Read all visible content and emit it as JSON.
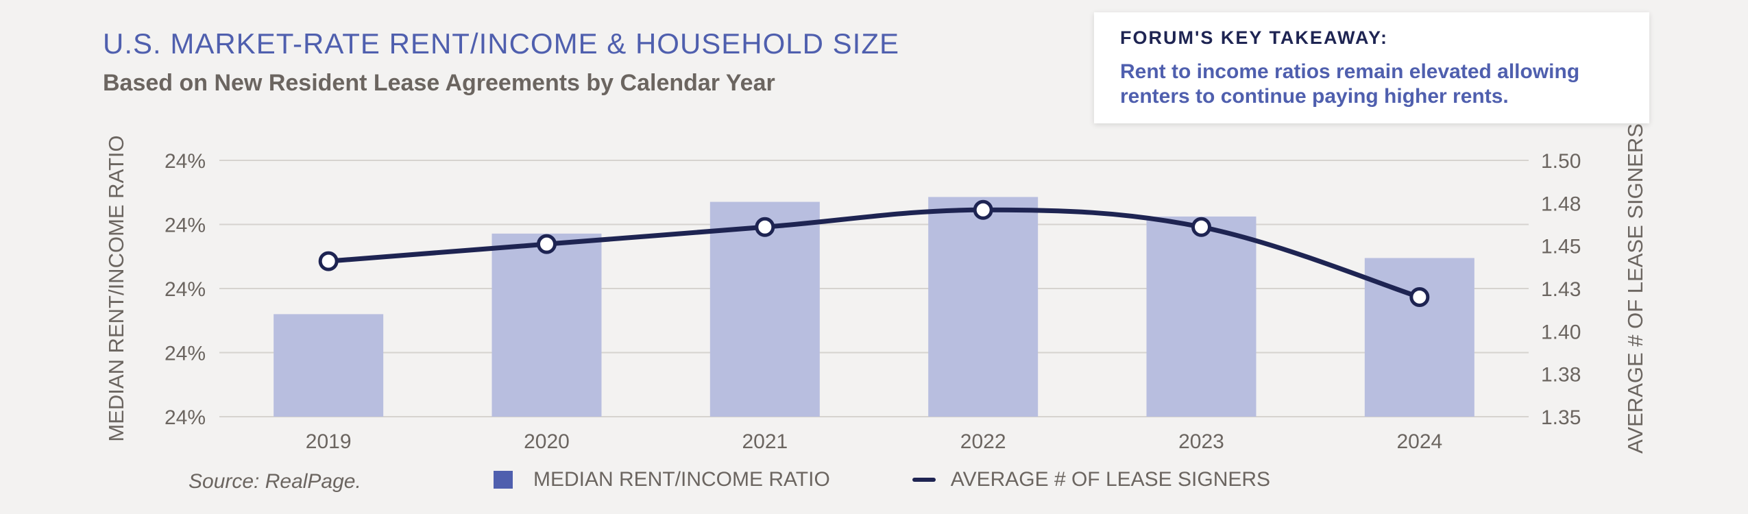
{
  "header": {
    "title": "U.S. MARKET-RATE RENT/INCOME & HOUSEHOLD SIZE",
    "subtitle": "Based on New Resident Lease Agreements by Calendar Year"
  },
  "takeaway": {
    "heading": "FORUM'S KEY TAKEAWAY:",
    "text": "Rent to income ratios remain elevated allowing renters to continue paying higher rents."
  },
  "source": "Source: RealPage.",
  "colors": {
    "bar": "#b8bedf",
    "line": "#1e2452",
    "accent": "#4f5fae"
  },
  "chart_data": {
    "type": "bar",
    "categories": [
      "2019",
      "2020",
      "2021",
      "2022",
      "2023",
      "2024"
    ],
    "series": [
      {
        "name": "MEDIAN RENT/INCOME RATIO",
        "type": "bar",
        "axis": "left",
        "values": [
          0.2352,
          0.2385,
          0.2398,
          0.24,
          0.2392,
          0.2375
        ]
      },
      {
        "name": "AVERAGE # OF LEASE SIGNERS",
        "type": "line",
        "axis": "right",
        "values": [
          1.441,
          1.451,
          1.461,
          1.471,
          1.461,
          1.42
        ]
      }
    ],
    "ylabel": "MEDIAN RENT/INCOME RATIO",
    "y2label": "AVERAGE # OF LEASE SIGNERS",
    "yticks": [
      "24%",
      "24%",
      "24%",
      "24%",
      "24%"
    ],
    "y2ticks": [
      "1.35",
      "1.38",
      "1.40",
      "1.43",
      "1.45",
      "1.48",
      "1.50"
    ],
    "ylim": [
      0.231,
      0.2415
    ],
    "y2lim": [
      1.35,
      1.5
    ],
    "grid": true,
    "legend": "bottom"
  }
}
